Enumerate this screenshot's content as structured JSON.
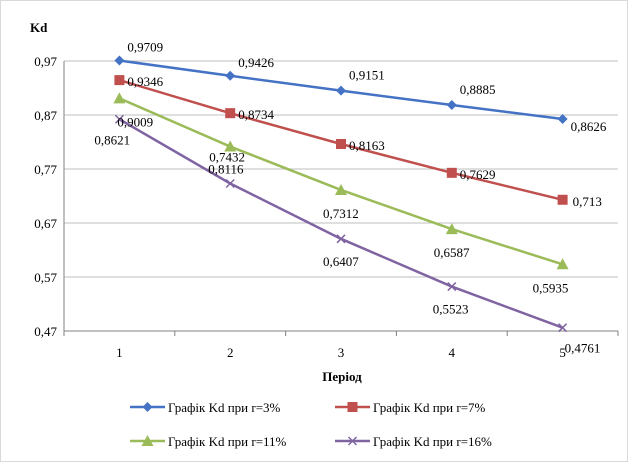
{
  "chart_data": {
    "type": "line",
    "title": "",
    "ylabel": "Kd",
    "xlabel": "Період",
    "categories": [
      "1",
      "2",
      "3",
      "4",
      "5"
    ],
    "y_ticks": [
      "0,97",
      "0,87",
      "0,77",
      "0,67",
      "0,57",
      "0,47"
    ],
    "ylim": [
      0.47,
      0.97
    ],
    "grid": "horizontal",
    "legend_position": "bottom",
    "series": [
      {
        "name": "Графік Kd при r=3%",
        "color": "#4472C4",
        "marker": "diamond",
        "values": [
          0.9709,
          0.9426,
          0.9151,
          0.8885,
          0.8626
        ],
        "labels": [
          "0,9709",
          "0,9426",
          "0,9151",
          "0,8885",
          "0,8626"
        ]
      },
      {
        "name": "Графік Kd при r=7%",
        "color": "#C0504D",
        "marker": "square",
        "values": [
          0.9346,
          0.8734,
          0.8163,
          0.7629,
          0.713
        ],
        "labels": [
          "0,9346",
          "0,8734",
          "0,8163",
          "0,7629",
          "0,713"
        ]
      },
      {
        "name": "Графік Kd при r=11%",
        "color": "#9BBB59",
        "marker": "triangle",
        "values": [
          0.9009,
          0.8116,
          0.7312,
          0.6587,
          0.5935
        ],
        "labels": [
          "0,9009",
          "0,8116",
          "0,7312",
          "0,6587",
          "0,5935"
        ]
      },
      {
        "name": "Графік Kd при r=16%",
        "color": "#8064A2",
        "marker": "x",
        "values": [
          0.8621,
          0.7432,
          0.6407,
          0.5523,
          0.4761
        ],
        "labels": [
          "0,8621",
          "0,7432",
          "0,6407",
          "0,5523",
          "0,4761"
        ]
      }
    ]
  }
}
